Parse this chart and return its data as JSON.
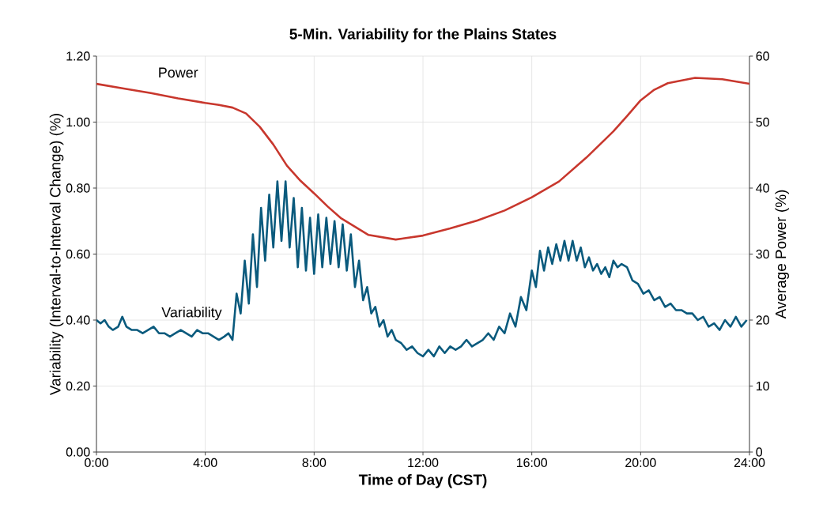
{
  "chart_data": {
    "type": "line",
    "title": "5-Min. Variability for the Plains States",
    "xlabel": "Time of Day (CST)",
    "ylabel": "Variability (Interval-to-Interval Change) (%)",
    "y2label": "Average Power (%)",
    "xlim": [
      0,
      24
    ],
    "xticks": [
      {
        "value": 0,
        "label": "0:00"
      },
      {
        "value": 4,
        "label": "4:00"
      },
      {
        "value": 8,
        "label": "8:00"
      },
      {
        "value": 12,
        "label": "12:00"
      },
      {
        "value": 16,
        "label": "16:00"
      },
      {
        "value": 20,
        "label": "20:00"
      },
      {
        "value": 24,
        "label": "24:00"
      }
    ],
    "ylim": [
      0,
      1.2
    ],
    "yticks": [
      {
        "value": 0,
        "label": "0.00"
      },
      {
        "value": 0.2,
        "label": "0.20"
      },
      {
        "value": 0.4,
        "label": "0.40"
      },
      {
        "value": 0.6,
        "label": "0.60"
      },
      {
        "value": 0.8,
        "label": "0.80"
      },
      {
        "value": 1.0,
        "label": "1.00"
      },
      {
        "value": 1.2,
        "label": "1.20"
      }
    ],
    "y2lim": [
      0,
      60
    ],
    "y2ticks": [
      0,
      10,
      20,
      30,
      40,
      50,
      60
    ],
    "grid": true,
    "legend": false,
    "series": [
      {
        "name": "Power",
        "color": "#c8372d",
        "axis": "y2",
        "x": [
          0,
          1,
          2,
          3,
          4,
          4.5,
          5,
          5.5,
          6,
          6.5,
          7,
          7.5,
          8,
          8.5,
          9,
          10,
          11,
          12,
          13,
          14,
          15,
          16,
          17,
          18,
          19,
          19.5,
          20,
          20.5,
          21,
          22,
          23,
          24
        ],
        "values": [
          55.8,
          55.1,
          54.4,
          53.6,
          52.9,
          52.6,
          52.2,
          51.3,
          49.3,
          46.6,
          43.4,
          41.1,
          39.2,
          37.2,
          35.4,
          32.9,
          32.2,
          32.8,
          33.9,
          35.1,
          36.6,
          38.6,
          41.0,
          44.6,
          48.6,
          50.9,
          53.3,
          54.9,
          55.9,
          56.7,
          56.5,
          55.8
        ]
      },
      {
        "name": "Variability",
        "color": "#0a5a7d",
        "axis": "y",
        "x": [
          0,
          0.15,
          0.3,
          0.45,
          0.6,
          0.8,
          0.95,
          1.1,
          1.3,
          1.5,
          1.7,
          1.9,
          2.1,
          2.3,
          2.5,
          2.7,
          2.9,
          3.1,
          3.3,
          3.5,
          3.7,
          3.9,
          4.1,
          4.3,
          4.5,
          4.7,
          4.85,
          5.0,
          5.15,
          5.3,
          5.45,
          5.6,
          5.75,
          5.9,
          6.05,
          6.2,
          6.35,
          6.5,
          6.65,
          6.8,
          6.95,
          7.1,
          7.25,
          7.4,
          7.55,
          7.7,
          7.85,
          8.0,
          8.15,
          8.3,
          8.45,
          8.6,
          8.75,
          8.9,
          9.05,
          9.2,
          9.35,
          9.5,
          9.65,
          9.8,
          9.95,
          10.1,
          10.25,
          10.4,
          10.55,
          10.7,
          10.85,
          11.0,
          11.2,
          11.4,
          11.6,
          11.8,
          12.0,
          12.2,
          12.4,
          12.6,
          12.8,
          13.0,
          13.2,
          13.4,
          13.6,
          13.8,
          14.0,
          14.2,
          14.4,
          14.6,
          14.8,
          15.0,
          15.2,
          15.4,
          15.6,
          15.8,
          16.0,
          16.15,
          16.3,
          16.45,
          16.6,
          16.75,
          16.9,
          17.05,
          17.2,
          17.35,
          17.5,
          17.65,
          17.8,
          17.95,
          18.1,
          18.25,
          18.4,
          18.55,
          18.7,
          18.85,
          19.0,
          19.15,
          19.3,
          19.5,
          19.7,
          19.9,
          20.1,
          20.3,
          20.5,
          20.7,
          20.9,
          21.1,
          21.3,
          21.5,
          21.7,
          21.9,
          22.1,
          22.3,
          22.5,
          22.7,
          22.9,
          23.1,
          23.3,
          23.5,
          23.7,
          23.9
        ],
        "values": [
          0.4,
          0.39,
          0.4,
          0.38,
          0.37,
          0.38,
          0.41,
          0.38,
          0.37,
          0.37,
          0.36,
          0.37,
          0.38,
          0.36,
          0.36,
          0.35,
          0.36,
          0.37,
          0.36,
          0.35,
          0.37,
          0.36,
          0.36,
          0.35,
          0.34,
          0.35,
          0.36,
          0.34,
          0.48,
          0.42,
          0.58,
          0.45,
          0.66,
          0.5,
          0.74,
          0.58,
          0.78,
          0.62,
          0.82,
          0.64,
          0.82,
          0.62,
          0.77,
          0.56,
          0.74,
          0.55,
          0.71,
          0.54,
          0.72,
          0.56,
          0.71,
          0.57,
          0.7,
          0.56,
          0.69,
          0.55,
          0.66,
          0.5,
          0.58,
          0.46,
          0.5,
          0.42,
          0.44,
          0.38,
          0.4,
          0.35,
          0.37,
          0.34,
          0.33,
          0.31,
          0.32,
          0.3,
          0.29,
          0.31,
          0.29,
          0.32,
          0.3,
          0.32,
          0.31,
          0.32,
          0.34,
          0.32,
          0.33,
          0.34,
          0.36,
          0.34,
          0.38,
          0.36,
          0.42,
          0.38,
          0.47,
          0.43,
          0.55,
          0.5,
          0.61,
          0.55,
          0.62,
          0.57,
          0.63,
          0.58,
          0.64,
          0.58,
          0.64,
          0.58,
          0.62,
          0.56,
          0.59,
          0.55,
          0.57,
          0.54,
          0.56,
          0.53,
          0.58,
          0.56,
          0.57,
          0.56,
          0.52,
          0.51,
          0.48,
          0.49,
          0.46,
          0.47,
          0.44,
          0.45,
          0.43,
          0.43,
          0.42,
          0.42,
          0.4,
          0.41,
          0.38,
          0.39,
          0.37,
          0.4,
          0.38,
          0.41,
          0.38,
          0.4
        ]
      }
    ]
  }
}
